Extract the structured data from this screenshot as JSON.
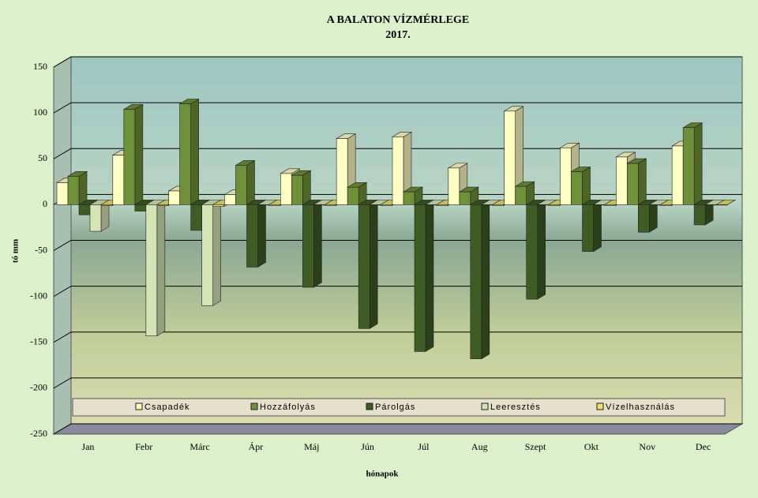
{
  "chart_data": {
    "type": "bar3d",
    "title": "A BALATON VÍZMÉRLEGE",
    "subtitle": "2017.",
    "y_label": "tó mm",
    "x_label": "hónapok",
    "categories": [
      "Jan",
      "Febr",
      "Márc",
      "Ápr",
      "Máj",
      "Jún",
      "Júl",
      "Aug",
      "Szept",
      "Okt",
      "Nov",
      "Dec"
    ],
    "series": [
      {
        "name": "Csapadék",
        "color": "#ffffc4",
        "values": [
          24,
          54,
          15,
          11,
          34,
          72,
          74,
          40,
          102,
          62,
          52,
          64
        ]
      },
      {
        "name": "Hozzáfolyás",
        "color": "#6e9038",
        "values": [
          31,
          104,
          110,
          43,
          32,
          19,
          14,
          14,
          20,
          36,
          45,
          84
        ]
      },
      {
        "name": "Párolgás",
        "color": "#3e5c24",
        "values": [
          -11,
          -7,
          -28,
          -68,
          -90,
          -135,
          -160,
          -168,
          -103,
          -51,
          -30,
          -22
        ]
      },
      {
        "name": "Leeresztés",
        "color": "#d4e4b4",
        "values": [
          -29,
          -143,
          -110,
          0,
          0,
          0,
          0,
          0,
          0,
          0,
          0,
          0
        ]
      },
      {
        "name": "Vízelhasználás",
        "color": "#e8e070",
        "values": [
          -1,
          -1,
          -2,
          -1,
          -1,
          -1,
          -1,
          -1,
          -1,
          -1,
          -1,
          0
        ]
      }
    ],
    "ylim": [
      -250,
      150
    ],
    "yticks": [
      -250,
      -200,
      -150,
      -100,
      -50,
      0,
      50,
      100,
      150
    ],
    "grid": true
  }
}
